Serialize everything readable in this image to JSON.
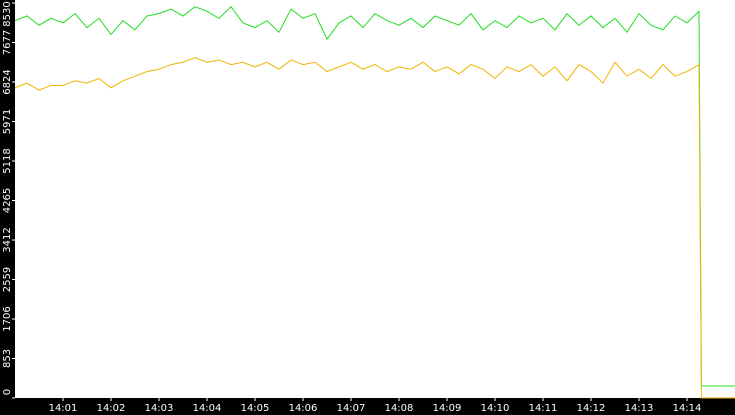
{
  "chart_data": {
    "type": "line",
    "x": [
      840,
      840.25,
      840.5,
      840.75,
      841,
      841.25,
      841.5,
      841.75,
      842,
      842.25,
      842.5,
      842.75,
      843,
      843.25,
      843.5,
      843.75,
      844,
      844.25,
      844.5,
      844.75,
      845,
      845.25,
      845.5,
      845.75,
      846,
      846.25,
      846.5,
      846.75,
      847,
      847.25,
      847.5,
      847.75,
      848,
      848.25,
      848.5,
      848.75,
      849,
      849.25,
      849.5,
      849.75,
      850,
      850.25,
      850.5,
      850.75,
      851,
      851.25,
      851.5,
      851.75,
      852,
      852.25,
      852.5,
      852.75,
      853,
      853.25,
      853.5,
      853.75,
      854,
      854.25,
      854.3,
      855
    ],
    "series": [
      {
        "color": "#22dd22",
        "values": [
          8150,
          8250,
          8050,
          8200,
          8100,
          8300,
          8000,
          8200,
          7850,
          8150,
          7950,
          8250,
          8300,
          8400,
          8250,
          8450,
          8350,
          8200,
          8450,
          8100,
          8000,
          8150,
          7900,
          8400,
          8200,
          8300,
          7750,
          8100,
          8250,
          8000,
          8300,
          8150,
          8050,
          8200,
          8000,
          8250,
          8150,
          8050,
          8300,
          7950,
          8150,
          8000,
          8250,
          8100,
          8200,
          7950,
          8300,
          8050,
          8250,
          8000,
          8200,
          7900,
          8300,
          8050,
          7950,
          8250,
          8100,
          8350,
          259,
          259
        ]
      },
      {
        "color": "#f0b400",
        "values": [
          6700,
          6800,
          6650,
          6750,
          6750,
          6850,
          6800,
          6900,
          6700,
          6850,
          6950,
          7050,
          7100,
          7200,
          7250,
          7350,
          7250,
          7300,
          7200,
          7250,
          7150,
          7250,
          7100,
          7300,
          7200,
          7250,
          7050,
          7150,
          7250,
          7100,
          7200,
          7050,
          7150,
          7100,
          7250,
          7050,
          7150,
          7000,
          7200,
          7100,
          6900,
          7150,
          7050,
          7200,
          6950,
          7150,
          6850,
          7200,
          7050,
          6800,
          7250,
          6950,
          7100,
          6900,
          7200,
          6950,
          7050,
          7200,
          0,
          0
        ]
      }
    ],
    "xlim": [
      840,
      855
    ],
    "xticks": [
      {
        "value": 841,
        "label": "14:01"
      },
      {
        "value": 842,
        "label": "14:02"
      },
      {
        "value": 843,
        "label": "14:03"
      },
      {
        "value": 844,
        "label": "14:04"
      },
      {
        "value": 845,
        "label": "14:05"
      },
      {
        "value": 846,
        "label": "14:06"
      },
      {
        "value": 847,
        "label": "14:07"
      },
      {
        "value": 848,
        "label": "14:08"
      },
      {
        "value": 849,
        "label": "14:09"
      },
      {
        "value": 850,
        "label": "14:10"
      },
      {
        "value": 851,
        "label": "14:11"
      },
      {
        "value": 852,
        "label": "14:12"
      },
      {
        "value": 853,
        "label": "14:13"
      },
      {
        "value": 854,
        "label": "14:14"
      }
    ],
    "ylim": [
      0,
      8530
    ],
    "yticks": [
      0,
      853,
      1706,
      2559,
      3412,
      4265,
      5118,
      5971,
      6824,
      7677,
      8530
    ]
  }
}
